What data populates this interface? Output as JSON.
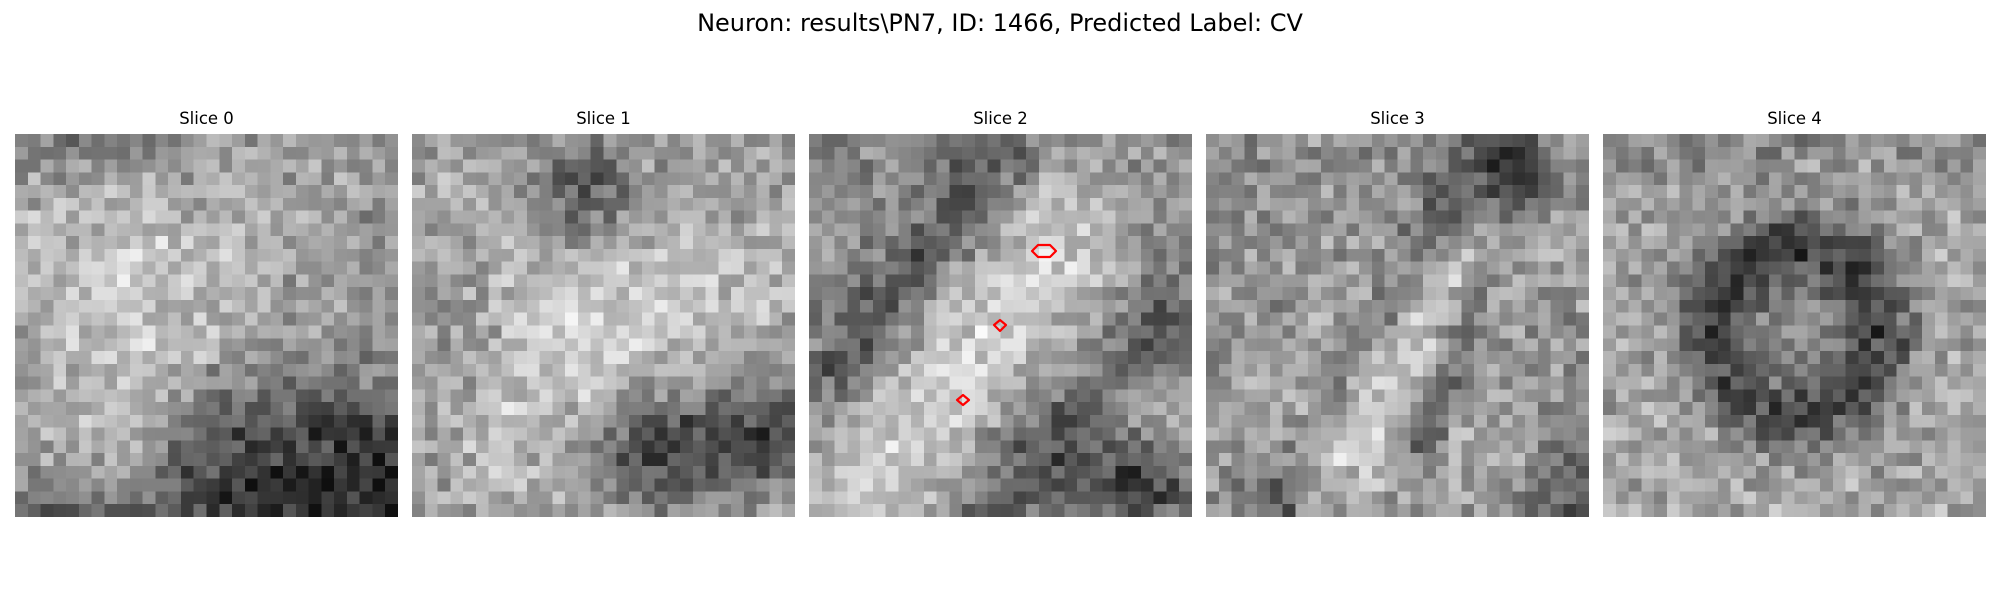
{
  "figure": {
    "title": "Neuron: results\\PN7, ID: 1466, Predicted Label: CV"
  },
  "slices": [
    {
      "title": "Slice 0",
      "image": "grayscale-microscopy-slice",
      "seed": 11
    },
    {
      "title": "Slice 1",
      "image": "grayscale-microscopy-slice",
      "seed": 23
    },
    {
      "title": "Slice 2",
      "image": "grayscale-microscopy-slice",
      "seed": 37,
      "annotations": {
        "contour_color": "#ff0000",
        "contour_count": 3
      }
    },
    {
      "title": "Slice 3",
      "image": "grayscale-microscopy-slice",
      "seed": 41
    },
    {
      "title": "Slice 4",
      "image": "grayscale-microscopy-slice",
      "seed": 59
    }
  ]
}
